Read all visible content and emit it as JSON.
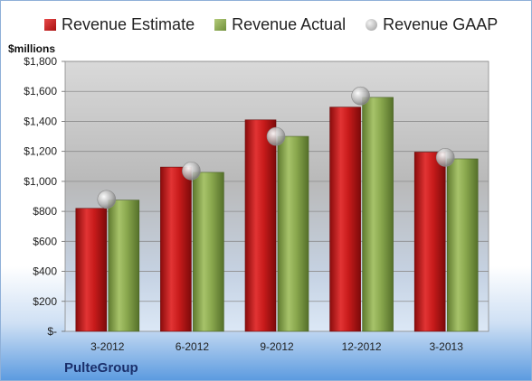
{
  "chart_data": {
    "type": "bar",
    "title": "",
    "ylabel": "$millions",
    "company": "PulteGroup",
    "categories": [
      "3-2012",
      "6-2012",
      "9-2012",
      "12-2012",
      "3-2013"
    ],
    "yticks": [
      "$-",
      "$200",
      "$400",
      "$600",
      "$800",
      "$1,000",
      "$1,200",
      "$1,400",
      "$1,600",
      "$1,800"
    ],
    "ylim": [
      0,
      1800
    ],
    "grid": true,
    "legend_position": "top",
    "series": [
      {
        "name": "Revenue Estimate",
        "kind": "bar",
        "color": "#c01818",
        "values": [
          820,
          1095,
          1410,
          1495,
          1195
        ]
      },
      {
        "name": "Revenue Actual",
        "kind": "bar",
        "color": "#8aa84e",
        "values": [
          875,
          1060,
          1300,
          1560,
          1150
        ]
      },
      {
        "name": "Revenue GAAP",
        "kind": "marker",
        "color": "#b0b0b0",
        "values": [
          880,
          1070,
          1300,
          1570,
          1160
        ]
      }
    ]
  }
}
